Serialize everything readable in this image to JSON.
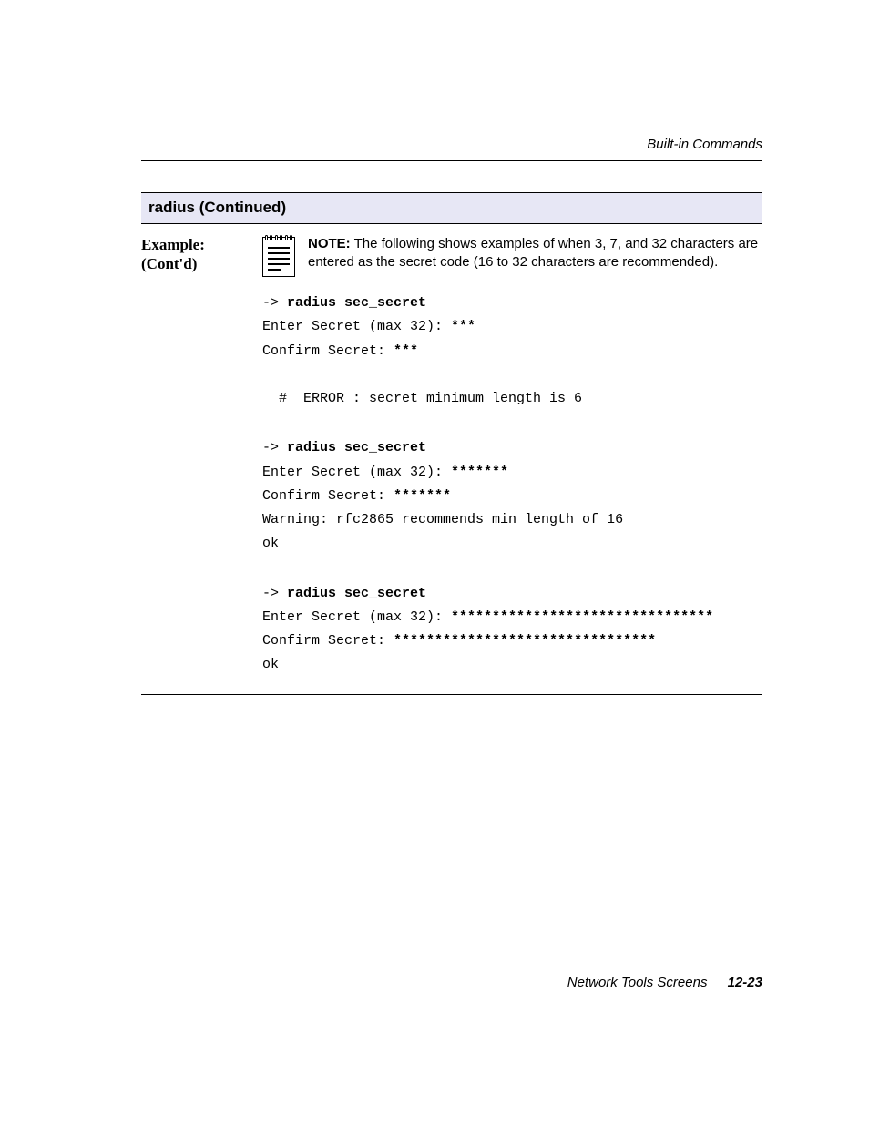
{
  "header": {
    "running": "Built-in Commands"
  },
  "section": {
    "title": "radius (Continued)"
  },
  "label": {
    "line1": "Example:",
    "line2": "(Cont'd)"
  },
  "note": {
    "lead": "NOTE:",
    "text": "  The following shows examples of when 3, 7, and 32 characters are entered as the secret code (16 to 32 characters are recommended)."
  },
  "ex1": {
    "prompt": "-> ",
    "cmd": "radius sec_secret",
    "l1a": "Enter Secret (max 32): ",
    "l1b": "***",
    "l2a": "Confirm Secret: ",
    "l2b": "***",
    "blank": "",
    "err": "  #  ERROR : secret minimum length is 6"
  },
  "ex2": {
    "prompt": "-> ",
    "cmd": "radius sec_secret",
    "l1a": "Enter Secret (max 32): ",
    "l1b": "*******",
    "l2a": "Confirm Secret: ",
    "l2b": "*******",
    "warn": "Warning: rfc2865 recommends min length of 16",
    "ok": "ok"
  },
  "ex3": {
    "prompt": "-> ",
    "cmd": "radius sec_secret",
    "l1a": "Enter Secret (max 32): ",
    "l1b": "********************************",
    "l2a": "Confirm Secret: ",
    "l2b": "********************************",
    "ok": "ok"
  },
  "footer": {
    "title": "Network Tools Screens",
    "page": "12-23"
  }
}
